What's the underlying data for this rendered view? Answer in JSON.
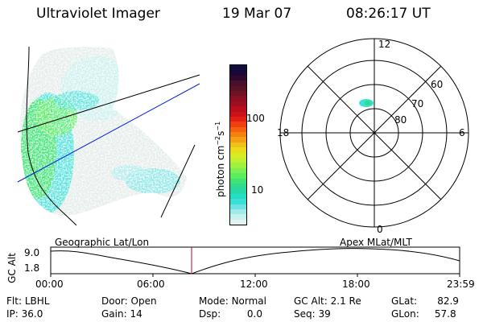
{
  "header": {
    "title": "Ultraviolet Imager",
    "date": "19 Mar 07",
    "time": "08:26:17 UT"
  },
  "colorbar": {
    "unit_main": "photon cm",
    "unit_exp1": "−2",
    "unit_mid": "s",
    "unit_exp2": "−1",
    "tick_100": "100",
    "tick_10": "10",
    "colors": [
      "#101040",
      "#1c0838",
      "#300a2e",
      "#48102a",
      "#5a1428",
      "#701226",
      "#8a1022",
      "#a00e20",
      "#b80e1c",
      "#cc1218",
      "#e02014",
      "#ee4010",
      "#f4600c",
      "#f48010",
      "#f4a014",
      "#f0c018",
      "#e8dc1c",
      "#d8ec24",
      "#c0f030",
      "#a0f040",
      "#7cf050",
      "#5cec60",
      "#40e474",
      "#30dc8c",
      "#28d8a8",
      "#26dcc4",
      "#3ae0d8",
      "#6ce4e4",
      "#a0eaea",
      "#c8f0ee",
      "#e2f4f2"
    ]
  },
  "polar_plot": {
    "label_12": "12",
    "label_6": "6",
    "label_18": "18",
    "label_0": "0",
    "label_60": "60",
    "label_70": "70",
    "label_80": "80"
  },
  "timeline": {
    "left_title": "Geographic Lat/Lon",
    "right_title": "Apex MLat/MLT",
    "axis_label": "GC Alt",
    "y_top": "9.0",
    "y_bottom": "1.8",
    "ticks": [
      "00:00",
      "06:00",
      "12:00",
      "18:00",
      "23:59"
    ],
    "current_marker_color": "#c00040"
  },
  "info": {
    "flt_label": "Flt:",
    "flt_value": "LBHL",
    "door_label": "Door:",
    "door_value": "Open",
    "mode_label": "Mode:",
    "mode_value": "Normal",
    "gcalt_label": "GC Alt:",
    "gcalt_value": "2.1 Re",
    "glat_label": "GLat:",
    "glat_value": "82.9",
    "ip_label": "IP:",
    "ip_value": "36.0",
    "gain_label": "Gain:",
    "gain_value": "14",
    "dsp_label": "Dsp:",
    "dsp_value": "0.0",
    "seq_label": "Seq:",
    "seq_value": "39",
    "glon_label": "GLon:",
    "glon_value": "57.8"
  }
}
